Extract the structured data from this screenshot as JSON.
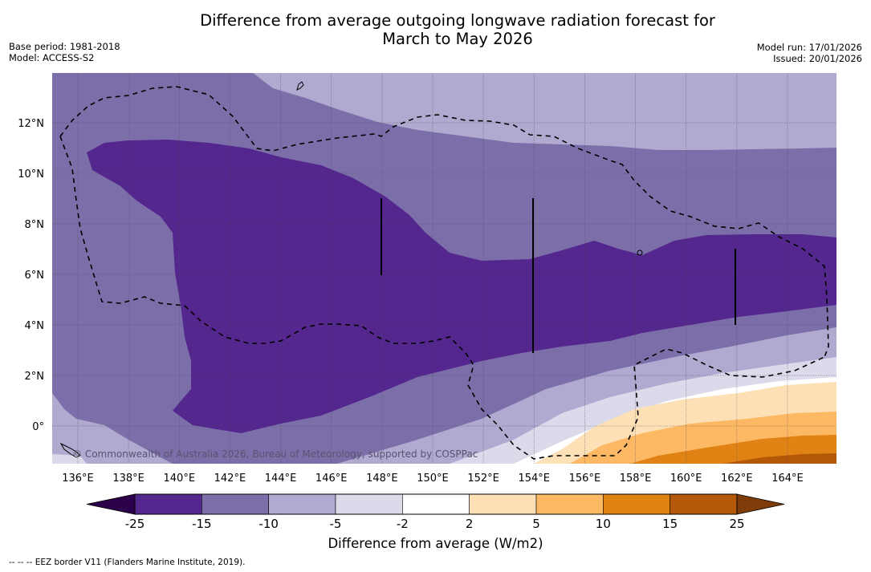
{
  "header": {
    "title_line1": "Difference from average outgoing longwave radiation forecast for",
    "title_line2": "March to May 2026",
    "base_period": "Base period: 1981-2018",
    "model": "Model: ACCESS-S2",
    "model_run": "Model run: 17/01/2026",
    "issued": "Issued: 20/01/2026"
  },
  "map": {
    "copyright": "© Commonwealth of Australia 2026, Bureau of Meteorology, supported by COSPPac",
    "eez_legend": "--  --  -- EEZ border V11 (Flanders Marine Institute, 2019)."
  },
  "chart_data": {
    "type": "heatmap",
    "title": "Difference from average outgoing longwave radiation forecast for March to May 2026",
    "projection": "PlateCarree lon/lat",
    "xlabel": "",
    "ylabel": "",
    "lon_range": [
      135,
      166
    ],
    "lat_range": [
      -1.5,
      13.9
    ],
    "x_ticks": [
      "136°E",
      "138°E",
      "140°E",
      "142°E",
      "144°E",
      "146°E",
      "148°E",
      "150°E",
      "152°E",
      "154°E",
      "156°E",
      "158°E",
      "160°E",
      "162°E",
      "164°E"
    ],
    "x_tick_values": [
      136,
      138,
      140,
      142,
      144,
      146,
      148,
      150,
      152,
      154,
      156,
      158,
      160,
      162,
      164
    ],
    "y_ticks": [
      "0°",
      "2°N",
      "4°N",
      "6°N",
      "8°N",
      "10°N",
      "12°N"
    ],
    "y_tick_values": [
      0,
      2,
      4,
      6,
      8,
      10,
      12
    ],
    "grid": true,
    "colorbar": {
      "label": "Difference from average (W/m2)",
      "tick_labels": [
        "-25",
        "-15",
        "-10",
        "-5",
        "-2",
        "2",
        "5",
        "10",
        "15",
        "25"
      ],
      "levels": [
        -25,
        -15,
        -10,
        -5,
        -2,
        2,
        5,
        10,
        15,
        25
      ],
      "colors": [
        "#54278f",
        "#7c6fa9",
        "#b0a9d0",
        "#dadaeb",
        "#ffffff",
        "#fee0b6",
        "#fdb863",
        "#e08214",
        "#b35806"
      ],
      "under_color": "#2d004b",
      "over_color": "#7f3b08",
      "extend": "both",
      "placement": "bottom"
    },
    "contour_regions": [
      {
        "band": "-25 to -15",
        "description": "Large core of strongest negative anomaly from ~136.5°E to 165°E, roughly 1°S–11°N in west narrowing to 3–7.5°N in east"
      },
      {
        "band": "-15 to -10",
        "description": "Surrounding region covering west and north of core"
      },
      {
        "band": "-10 to -5",
        "description": "Northern band above ~11°N and equatorial band south-east"
      },
      {
        "band": "-5 to -2",
        "description": "Narrow band near equator in south-east"
      },
      {
        "band": "-2 to 2",
        "description": "Near-equator band east of 154°E"
      },
      {
        "band": "2 to 5",
        "description": "South-east corner band"
      },
      {
        "band": "5 to 10",
        "description": "South-east corner band"
      },
      {
        "band": "10 to 15",
        "description": "South-east corner band"
      },
      {
        "band": "15 to 25",
        "description": "Extreme south-east corner near 1.5°S, 160–166°E"
      }
    ],
    "overlays": [
      "EEZ borders (dashed)",
      "coastlines"
    ]
  }
}
